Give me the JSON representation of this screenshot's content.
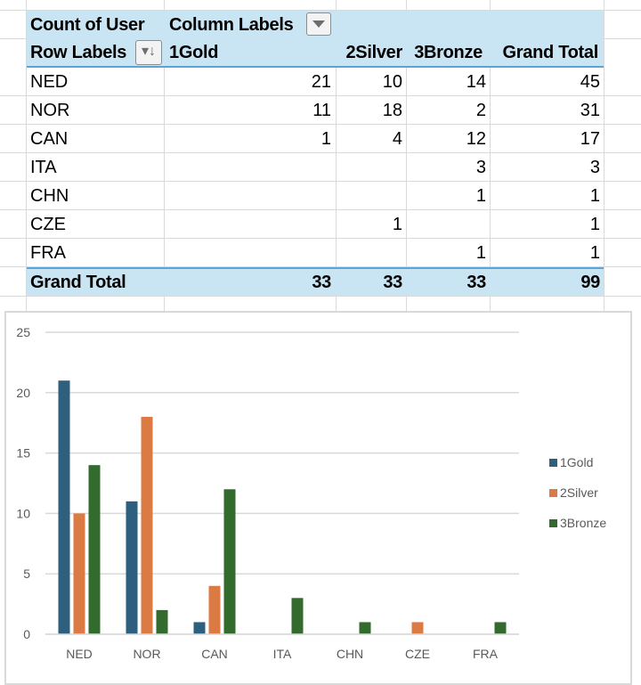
{
  "pivot": {
    "value_field": "Count of User",
    "column_labels": "Column Labels",
    "row_labels": "Row Labels",
    "columns": [
      "1Gold",
      "2Silver",
      "3Bronze",
      "Grand Total"
    ],
    "rows": [
      {
        "label": "NED",
        "values": [
          "21",
          "10",
          "14",
          "45"
        ]
      },
      {
        "label": "NOR",
        "values": [
          "11",
          "18",
          "2",
          "31"
        ]
      },
      {
        "label": "CAN",
        "values": [
          "1",
          "4",
          "12",
          "17"
        ]
      },
      {
        "label": "ITA",
        "values": [
          "",
          "",
          "3",
          "3"
        ]
      },
      {
        "label": "CHN",
        "values": [
          "",
          "",
          "1",
          "1"
        ]
      },
      {
        "label": "CZE",
        "values": [
          "",
          "1",
          "",
          "1"
        ]
      },
      {
        "label": "FRA",
        "values": [
          "",
          "",
          "1",
          "1"
        ]
      }
    ],
    "grand_total": {
      "label": "Grand Total",
      "values": [
        "33",
        "33",
        "33",
        "99"
      ]
    },
    "icons": {
      "column_filter": "filter-dropdown-icon",
      "row_sort": "sort-filter-icon"
    }
  },
  "chart_data": {
    "type": "bar",
    "title": "",
    "xlabel": "",
    "ylabel": "",
    "categories": [
      "NED",
      "NOR",
      "CAN",
      "ITA",
      "CHN",
      "CZE",
      "FRA"
    ],
    "series": [
      {
        "name": "1Gold",
        "color": "#2e5f7f",
        "values": [
          21,
          11,
          1,
          0,
          0,
          0,
          0
        ]
      },
      {
        "name": "2Silver",
        "color": "#dc7a43",
        "values": [
          10,
          18,
          4,
          0,
          0,
          1,
          0
        ]
      },
      {
        "name": "3Bronze",
        "color": "#336b2e",
        "values": [
          14,
          2,
          12,
          3,
          1,
          0,
          1
        ]
      }
    ],
    "ylim": [
      0,
      25
    ],
    "yticks": [
      "0",
      "5",
      "10",
      "15",
      "20",
      "25"
    ],
    "grid": true,
    "legend": "right"
  }
}
